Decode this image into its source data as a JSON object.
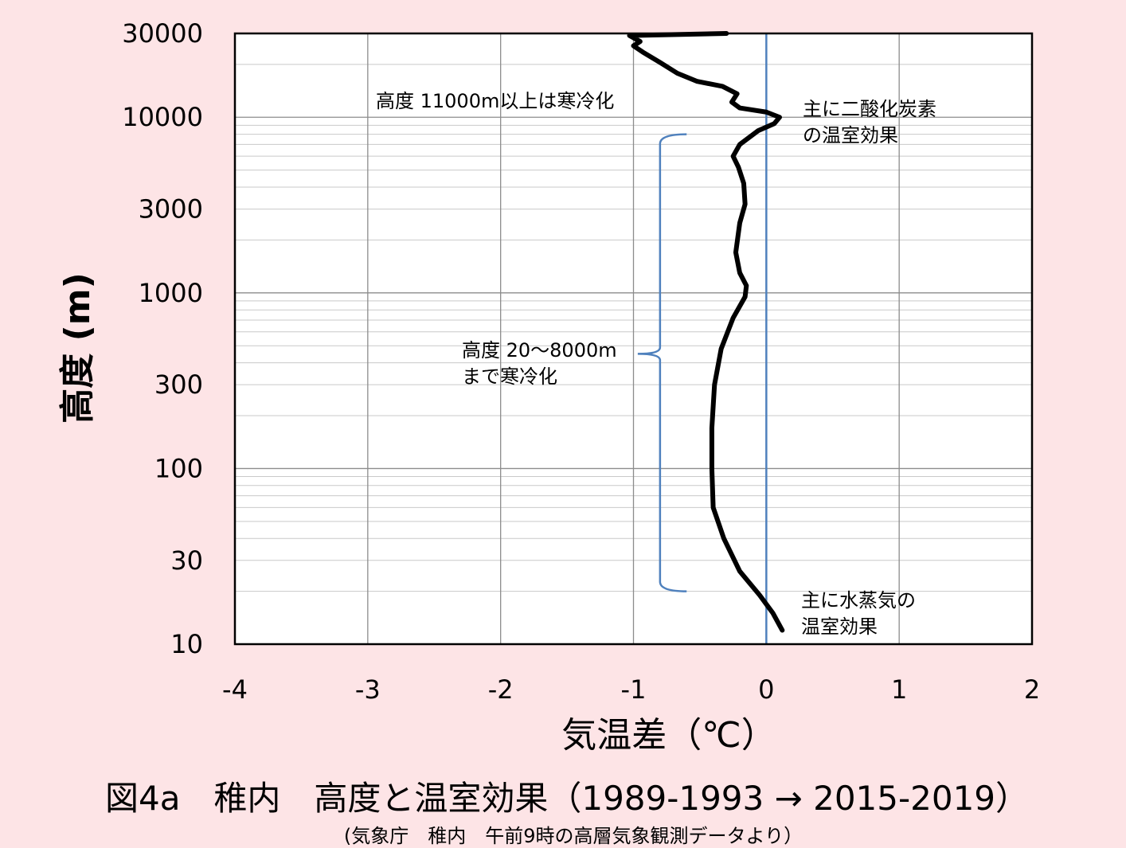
{
  "chart_data": {
    "type": "line",
    "title": "図4a　稚内　高度と温室効果（1989-1993 → 2015-2019）",
    "subtitle": "(気象庁　稚内　午前9時の高層気象観測データより）",
    "xlabel": "気温差（℃）",
    "ylabel": "高度 (m)",
    "xlim": [
      -4,
      2
    ],
    "ylim": [
      10,
      30000
    ],
    "yscale": "log",
    "grid": true,
    "x_ticks": [
      "-4",
      "-3",
      "-2",
      "-1",
      "0",
      "1",
      "2"
    ],
    "y_ticks": [
      {
        "value": 30000,
        "label": "30000"
      },
      {
        "value": 10000,
        "label": "10000"
      },
      {
        "value": 3000,
        "label": "3000"
      },
      {
        "value": 1000,
        "label": "1000"
      },
      {
        "value": 300,
        "label": "300"
      },
      {
        "value": 100,
        "label": "100"
      },
      {
        "value": 30,
        "label": "30"
      },
      {
        "value": 10,
        "label": "10"
      }
    ],
    "series": [
      {
        "color": "#000000",
        "points": [
          {
            "x": 0.12,
            "y": 12
          },
          {
            "x": 0.05,
            "y": 15
          },
          {
            "x": -0.05,
            "y": 19
          },
          {
            "x": -0.2,
            "y": 26
          },
          {
            "x": -0.32,
            "y": 40
          },
          {
            "x": -0.4,
            "y": 60
          },
          {
            "x": -0.41,
            "y": 100
          },
          {
            "x": -0.41,
            "y": 170
          },
          {
            "x": -0.39,
            "y": 300
          },
          {
            "x": -0.34,
            "y": 480
          },
          {
            "x": -0.25,
            "y": 720
          },
          {
            "x": -0.16,
            "y": 950
          },
          {
            "x": -0.15,
            "y": 1100
          },
          {
            "x": -0.2,
            "y": 1300
          },
          {
            "x": -0.23,
            "y": 1700
          },
          {
            "x": -0.2,
            "y": 2500
          },
          {
            "x": -0.16,
            "y": 3200
          },
          {
            "x": -0.17,
            "y": 4200
          },
          {
            "x": -0.21,
            "y": 5200
          },
          {
            "x": -0.25,
            "y": 6000
          },
          {
            "x": -0.2,
            "y": 7000
          },
          {
            "x": -0.06,
            "y": 8400
          },
          {
            "x": 0.06,
            "y": 9200
          },
          {
            "x": 0.1,
            "y": 10000
          },
          {
            "x": 0.0,
            "y": 10700
          },
          {
            "x": -0.2,
            "y": 11300
          },
          {
            "x": -0.26,
            "y": 12200
          },
          {
            "x": -0.22,
            "y": 13600
          },
          {
            "x": -0.33,
            "y": 15000
          },
          {
            "x": -0.52,
            "y": 16000
          },
          {
            "x": -0.67,
            "y": 17800
          },
          {
            "x": -0.8,
            "y": 20500
          },
          {
            "x": -0.93,
            "y": 23500
          },
          {
            "x": -1.0,
            "y": 25500
          },
          {
            "x": -0.95,
            "y": 27000
          },
          {
            "x": -1.03,
            "y": 29200
          },
          {
            "x": -0.3,
            "y": 30000
          }
        ]
      }
    ],
    "reference_lines": [
      {
        "x": 0,
        "color": "#4f81bd"
      }
    ],
    "annotations": [
      {
        "lines": [
          "高度 11000m以上は寒冷化"
        ]
      },
      {
        "lines": [
          "主に二酸化炭素",
          "の温室効果"
        ]
      },
      {
        "lines": [
          "高度 20〜8000m",
          "まで寒冷化"
        ]
      },
      {
        "lines": [
          "主に水蒸気の",
          "温室効果"
        ]
      }
    ],
    "bracket": {
      "y_from": 20,
      "y_to": 8000,
      "color": "#4f81bd"
    }
  }
}
